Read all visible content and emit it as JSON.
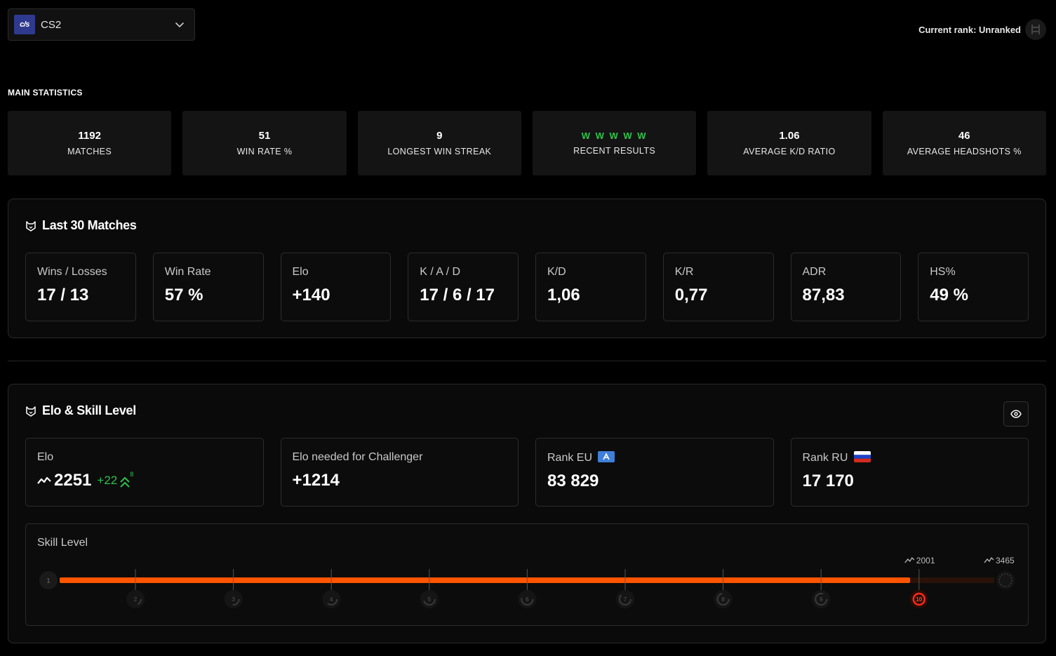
{
  "game_selector": {
    "logo": "c/s",
    "name": "CS2"
  },
  "current_rank": {
    "label": "Current rank: Unranked"
  },
  "main_statistics": {
    "heading": "MAIN STATISTICS",
    "cards": [
      {
        "value": "1192",
        "label": "MATCHES"
      },
      {
        "value": "51",
        "label": "WIN RATE %"
      },
      {
        "value": "9",
        "label": "LONGEST WIN STREAK"
      },
      {
        "value": "W W W W W",
        "label": "RECENT RESULTS"
      },
      {
        "value": "1.06",
        "label": "AVERAGE K/D RATIO"
      },
      {
        "value": "46",
        "label": "AVERAGE HEADSHOTS %"
      }
    ]
  },
  "last30": {
    "title": "Last 30 Matches",
    "cards": [
      {
        "label": "Wins / Losses",
        "value": "17 / 13"
      },
      {
        "label": "Win Rate",
        "value": "57 %"
      },
      {
        "label": "Elo",
        "value": "+140"
      },
      {
        "label": "K / A / D",
        "value": "17 / 6 / 17"
      },
      {
        "label": "K/D",
        "value": "1,06"
      },
      {
        "label": "K/R",
        "value": "0,77"
      },
      {
        "label": "ADR",
        "value": "87,83"
      },
      {
        "label": "HS%",
        "value": "49 %"
      }
    ]
  },
  "elo_skill": {
    "title": "Elo & Skill Level",
    "elo": {
      "label": "Elo",
      "value": "2251",
      "delta": "+22",
      "delta_count": "8"
    },
    "challenger": {
      "label": "Elo needed for Challenger",
      "value": "+1214"
    },
    "rank_eu": {
      "label": "Rank EU",
      "value": "83 829"
    },
    "rank_ru": {
      "label": "Rank RU",
      "value": "17 170"
    },
    "skill_level": {
      "label": "Skill Level",
      "levels": [
        "1",
        "2",
        "3",
        "4",
        "5",
        "6",
        "7",
        "8",
        "9",
        "10"
      ],
      "current_level": 10,
      "progress": 0.91,
      "level10_threshold": "2001",
      "challenger_threshold": "3465"
    }
  },
  "colors": {
    "accent": "#ff5500",
    "win": "#2ec24f"
  },
  "icons": [
    "chevron-down-icon",
    "rank-icon",
    "cat-icon",
    "eye-icon",
    "trend-icon",
    "double-chevron-up-icon"
  ]
}
